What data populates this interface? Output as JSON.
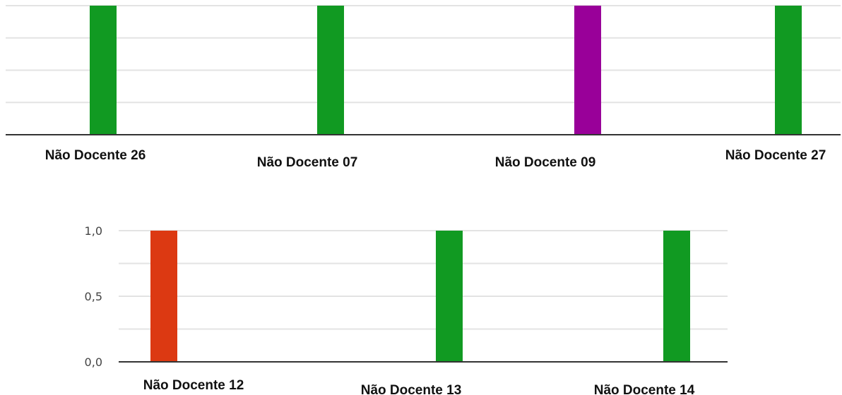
{
  "chart_data": [
    {
      "type": "bar",
      "categories": [
        "Não Docente 26",
        "Não Docente 07",
        "Não Docente 09",
        "Não Docente 27"
      ],
      "values": [
        1,
        1,
        1,
        1
      ],
      "colors": [
        "#119a22",
        "#119a22",
        "#990099",
        "#119a22"
      ],
      "ylim": [
        0,
        1
      ],
      "yticks": [],
      "grid": true
    },
    {
      "type": "bar",
      "categories": [
        "Não Docente 12",
        "Não Docente 13",
        "Não Docente 14"
      ],
      "values": [
        1,
        1,
        1
      ],
      "colors": [
        "#dc3912",
        "#119a22",
        "#119a22"
      ],
      "ylim": [
        0,
        1
      ],
      "yticks": [
        "1,0",
        "0,5",
        "0,0"
      ],
      "grid": true
    }
  ]
}
